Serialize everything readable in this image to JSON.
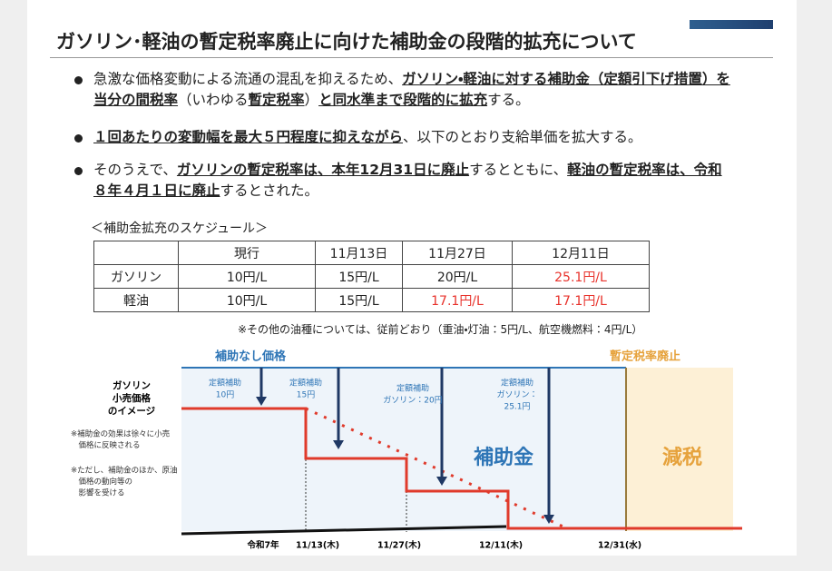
{
  "title": "ガソリン･軽油の暫定税率廃止に向けた補助金の段階的拡充について",
  "bullets": [
    [
      {
        "text": "急激な価格変動による流通の混乱を抑えるため、",
        "bold": false
      },
      {
        "text": "ガソリン・軽油に対する補助金（定額引下げ措置）を当分の間税率",
        "bold": true
      },
      {
        "text": "（いわゆる",
        "bold": false
      },
      {
        "text": "暫定税率",
        "bold": true
      },
      {
        "text": "）",
        "bold": false
      },
      {
        "text": "と同水準まで段階的に拡充",
        "bold": true
      },
      {
        "text": "する。",
        "bold": false
      }
    ],
    [
      {
        "text": "１回あたりの変動幅を最大５円程度に抑えながら",
        "bold": true
      },
      {
        "text": "、以下のとおり支給単価を拡大する。",
        "bold": false
      }
    ],
    [
      {
        "text": "そのうえで、",
        "bold": false
      },
      {
        "text": "ガソリンの暫定税率は、本年12月31日に廃止",
        "bold": true
      },
      {
        "text": "するとともに、",
        "bold": false
      },
      {
        "text": "軽油の暫定税率は、令和８年４月１日に廃止",
        "bold": true
      },
      {
        "text": "するとされた。",
        "bold": false
      }
    ]
  ],
  "schedule_label": "＜補助金拡充のスケジュール＞",
  "table": {
    "header": [
      "現行",
      "11月13日",
      "11月27日",
      "12月11日"
    ],
    "rows": [
      {
        "label": "ガソリン",
        "cells": [
          "10円/L",
          "15円/L",
          "20円/L",
          "25.1円/L"
        ]
      },
      {
        "label": "軽油",
        "cells": [
          "10円/L",
          "15円/L",
          "17.1円/L",
          "17.1円/L"
        ]
      }
    ],
    "highlight_color": "#e8322b",
    "highlighted": [
      {
        "row": 0,
        "cell": 3
      },
      {
        "row": 1,
        "cell": 2
      },
      {
        "row": 1,
        "cell": 3
      }
    ]
  },
  "note": "※その他の油種については、従前どおり（重油・灯油：5円/L、航空機燃料：4円/L）",
  "diagram": {
    "no_subsidy_label": "補助なし価格",
    "abolition_label": "暫定税率廃止",
    "side_title": [
      "ガソリン",
      "小売価格",
      "のイメージ"
    ],
    "notes": [
      [
        "※補助金の効果は徐々に小売",
        "　価格に反映される"
      ],
      [
        "※ただし、補助金のほか、原油",
        "　価格の動向等の",
        "　影響を受ける"
      ]
    ],
    "steps": [
      [
        "定額補助",
        "10円"
      ],
      [
        "定額補助",
        "15円"
      ],
      [
        "定額補助",
        "ガソリン：20円"
      ],
      [
        "定額補助",
        "ガソリン：",
        "25.1円"
      ]
    ],
    "subsidy_label": "補助金",
    "tax_cut_label": "減税",
    "dates": [
      "令和7年",
      "11/13(木)",
      "11/27(木)",
      "12/11(木)",
      "12/31(水)"
    ]
  }
}
